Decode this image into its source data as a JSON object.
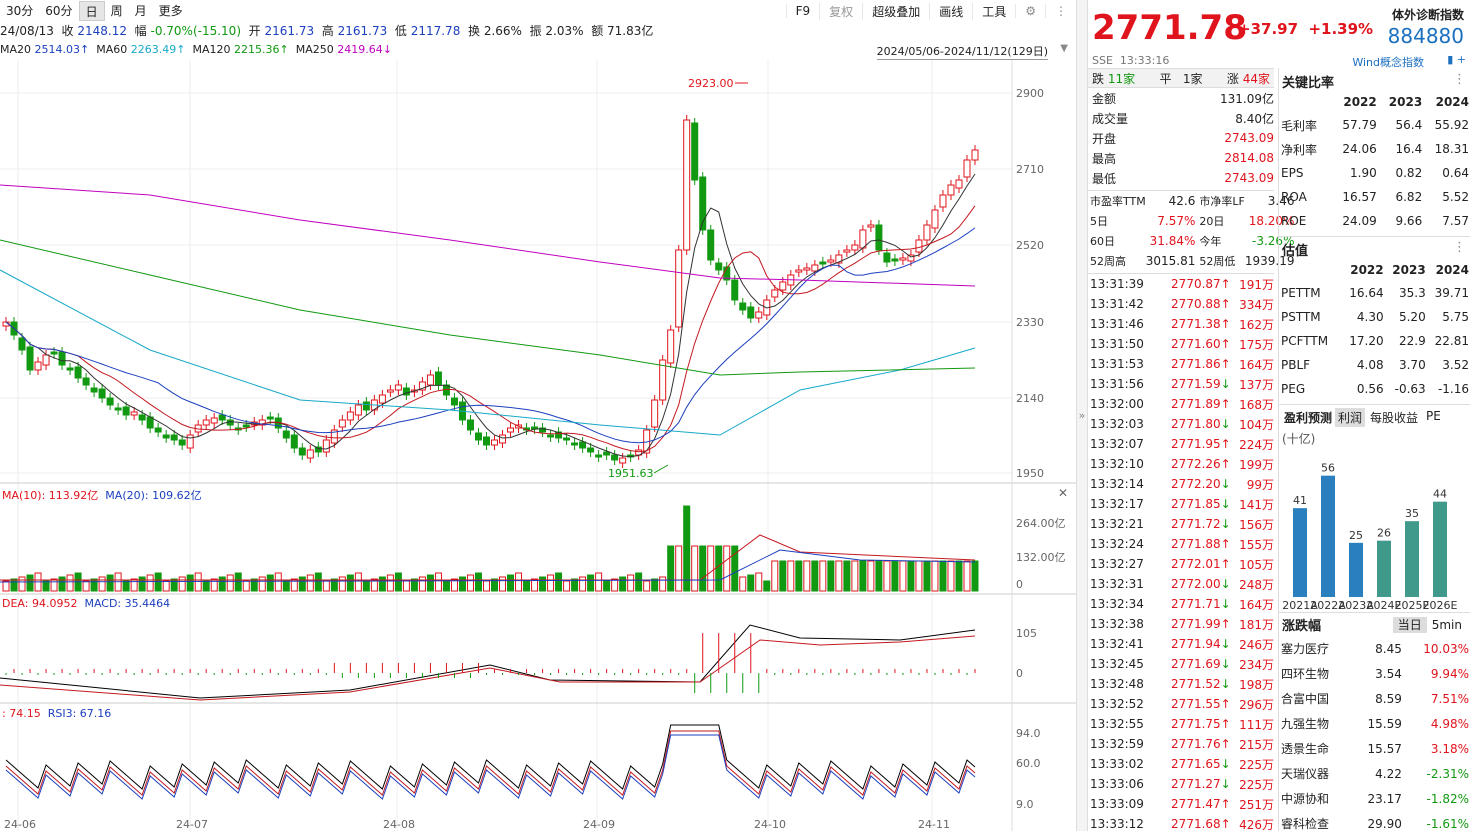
{
  "toolbar": {
    "left": [
      "30分",
      "60分",
      "日",
      "周",
      "月",
      "更多"
    ],
    "active": "日",
    "right": [
      "F9",
      "复权",
      "超级叠加",
      "画线",
      "工具"
    ]
  },
  "info": {
    "date": "24/08/13",
    "close_label": "收",
    "close": "2148.12",
    "amp_label": "幅",
    "amp": "-0.70%(-15.10)",
    "open_label": "开",
    "open": "2161.73",
    "high_label": "高",
    "high": "2161.73",
    "low_label": "低",
    "low": "2117.78",
    "turnover_label": "换",
    "turnover": "2.66%",
    "swing_label": "振",
    "swing": "2.03%",
    "amount_label": "额",
    "amount": "71.83亿"
  },
  "ma": [
    {
      "label": "MA20",
      "value": "2514.03↑",
      "color": "#1b3fbf"
    },
    {
      "label": "MA60",
      "value": "2263.49↑",
      "color": "#17a9c9"
    },
    {
      "label": "MA120",
      "value": "2215.36↑",
      "color": "#119911"
    },
    {
      "label": "MA250",
      "value": "2419.64↓",
      "color": "#c000c0"
    }
  ],
  "range_text": "2024/05/06-2024/11/12(129日)",
  "y_ticks": [
    "2900",
    "2710",
    "2520",
    "2330",
    "2140",
    "1950"
  ],
  "high_marker": "2923.00",
  "low_marker": "1951.63",
  "x_ticks": [
    "24-06",
    "24-07",
    "24-08",
    "24-09",
    "24-10",
    "24-11"
  ],
  "volume": {
    "ma10_label": "MA(10): 113.92亿",
    "ma20_label": "MA(20): 109.62亿",
    "ticks": [
      "264.00亿",
      "132.00亿",
      "0"
    ]
  },
  "macd": {
    "dea_label": "DEA: 94.0952",
    "macd_label": "MACD: 35.4464",
    "ticks": [
      "105",
      "0"
    ]
  },
  "rsi": {
    "rsi2_label": ": 74.15",
    "rsi3_label": "RSI3: 67.16",
    "ticks": [
      "94.0",
      "60.0",
      "9.0"
    ]
  },
  "quote": {
    "price": "2771.78",
    "change": "+37.97",
    "change_pct": "+1.39%",
    "name": "体外诊断指数",
    "code": "884880",
    "exchange": "SSE",
    "time": "13:33:16",
    "wind_label": "Wind概念指数"
  },
  "breadth": {
    "down_label": "跌",
    "down": "11家",
    "flat_label": "平",
    "flat": "1家",
    "up_label": "涨",
    "up": "44家"
  },
  "stats": [
    {
      "k": "金额",
      "v": "131.09亿",
      "c": "#222"
    },
    {
      "k": "成交量",
      "v": "8.40亿",
      "c": "#222"
    },
    {
      "k": "开盘",
      "v": "2743.09",
      "c": "#e0141c"
    },
    {
      "k": "最高",
      "v": "2814.08",
      "c": "#e0141c"
    },
    {
      "k": "最低",
      "v": "2743.09",
      "c": "#e0141c"
    }
  ],
  "valuation_rows": [
    {
      "k1": "市盈率TTM",
      "v1": "42.6",
      "k2": "市净率LF",
      "v2": "3.46",
      "c1": "#222",
      "c2": "#222"
    },
    {
      "k1": "5日",
      "v1": "7.57%",
      "k2": "20日",
      "v2": "18.20%",
      "c1": "#e0141c",
      "c2": "#e0141c"
    },
    {
      "k1": "60日",
      "v1": "31.84%",
      "k2": "今年",
      "v2": "-3.26%",
      "c1": "#e0141c",
      "c2": "#119911"
    },
    {
      "k1": "52周高",
      "v1": "3015.81",
      "k2": "52周低",
      "v2": "1939.19",
      "c1": "#222",
      "c2": "#222"
    }
  ],
  "ticks": [
    {
      "t": "13:31:39",
      "p": "2770.87",
      "d": "up",
      "v": "191万"
    },
    {
      "t": "13:31:42",
      "p": "2770.88",
      "d": "up",
      "v": "334万"
    },
    {
      "t": "13:31:46",
      "p": "2771.38",
      "d": "up",
      "v": "162万"
    },
    {
      "t": "13:31:50",
      "p": "2771.60",
      "d": "up",
      "v": "175万"
    },
    {
      "t": "13:31:53",
      "p": "2771.86",
      "d": "up",
      "v": "164万"
    },
    {
      "t": "13:31:56",
      "p": "2771.59",
      "d": "down",
      "v": "137万"
    },
    {
      "t": "13:32:00",
      "p": "2771.89",
      "d": "up",
      "v": "168万"
    },
    {
      "t": "13:32:03",
      "p": "2771.80",
      "d": "down",
      "v": "104万"
    },
    {
      "t": "13:32:07",
      "p": "2771.95",
      "d": "up",
      "v": "224万"
    },
    {
      "t": "13:32:10",
      "p": "2772.26",
      "d": "up",
      "v": "199万"
    },
    {
      "t": "13:32:14",
      "p": "2772.20",
      "d": "down",
      "v": "99万"
    },
    {
      "t": "13:32:17",
      "p": "2771.85",
      "d": "down",
      "v": "141万"
    },
    {
      "t": "13:32:21",
      "p": "2771.72",
      "d": "down",
      "v": "156万"
    },
    {
      "t": "13:32:24",
      "p": "2771.88",
      "d": "up",
      "v": "155万"
    },
    {
      "t": "13:32:27",
      "p": "2772.01",
      "d": "up",
      "v": "105万"
    },
    {
      "t": "13:32:31",
      "p": "2772.00",
      "d": "down",
      "v": "248万"
    },
    {
      "t": "13:32:34",
      "p": "2771.71",
      "d": "down",
      "v": "164万"
    },
    {
      "t": "13:32:38",
      "p": "2771.99",
      "d": "up",
      "v": "181万"
    },
    {
      "t": "13:32:41",
      "p": "2771.94",
      "d": "down",
      "v": "246万"
    },
    {
      "t": "13:32:45",
      "p": "2771.69",
      "d": "down",
      "v": "234万"
    },
    {
      "t": "13:32:48",
      "p": "2771.52",
      "d": "down",
      "v": "198万"
    },
    {
      "t": "13:32:52",
      "p": "2771.55",
      "d": "up",
      "v": "296万"
    },
    {
      "t": "13:32:55",
      "p": "2771.75",
      "d": "up",
      "v": "111万"
    },
    {
      "t": "13:32:59",
      "p": "2771.76",
      "d": "up",
      "v": "215万"
    },
    {
      "t": "13:33:02",
      "p": "2771.65",
      "d": "down",
      "v": "225万"
    },
    {
      "t": "13:33:06",
      "p": "2771.27",
      "d": "down",
      "v": "225万"
    },
    {
      "t": "13:33:09",
      "p": "2771.47",
      "d": "up",
      "v": "251万"
    },
    {
      "t": "13:33:12",
      "p": "2771.68",
      "d": "up",
      "v": "426万"
    }
  ],
  "ratios": {
    "title": "关键比率",
    "years": [
      "2022",
      "2023",
      "2024"
    ],
    "rows": [
      {
        "k": "毛利率",
        "v": [
          "57.79",
          "56.4",
          "55.92"
        ]
      },
      {
        "k": "净利率",
        "v": [
          "24.06",
          "16.4",
          "18.31"
        ]
      },
      {
        "k": "EPS",
        "v": [
          "1.90",
          "0.82",
          "0.64"
        ]
      },
      {
        "k": "ROA",
        "v": [
          "16.57",
          "6.82",
          "5.52"
        ]
      },
      {
        "k": "ROE",
        "v": [
          "24.09",
          "9.66",
          "7.57"
        ]
      }
    ]
  },
  "estimates": {
    "title": "估值",
    "years": [
      "2022",
      "2023",
      "2024"
    ],
    "rows": [
      {
        "k": "PETTM",
        "v": [
          "16.64",
          "35.3",
          "39.71"
        ]
      },
      {
        "k": "PSTTM",
        "v": [
          "4.30",
          "5.20",
          "5.75"
        ]
      },
      {
        "k": "PCFTTM",
        "v": [
          "17.20",
          "22.9",
          "22.81"
        ]
      },
      {
        "k": "PBLF",
        "v": [
          "4.08",
          "3.70",
          "3.52"
        ]
      },
      {
        "k": "PEG",
        "v": [
          "0.56",
          "-0.63",
          "-1.16"
        ]
      }
    ]
  },
  "forecast": {
    "tabs": [
      "盈利预测",
      "利润",
      "每股收益",
      "PE"
    ],
    "unit": "(十亿)",
    "chart_data": {
      "type": "bar",
      "categories": [
        "2021A",
        "2022A",
        "2023A",
        "2024E",
        "2025E",
        "2026E"
      ],
      "values": [
        41,
        56,
        25,
        26,
        35,
        44
      ],
      "colors": [
        "#2a7fbf",
        "#2a7fbf",
        "#2a7fbf",
        "#3f9a8c",
        "#3f9a8c",
        "#3f9a8c"
      ]
    }
  },
  "movers": {
    "title": "涨跌幅",
    "tabs": [
      "当日",
      "5min"
    ],
    "rows": [
      {
        "n": "塞力医疗",
        "p": "8.45",
        "c": "10.03%",
        "col": "#e0141c"
      },
      {
        "n": "四环生物",
        "p": "3.54",
        "c": "9.94%",
        "col": "#e0141c"
      },
      {
        "n": "合富中国",
        "p": "8.59",
        "c": "7.51%",
        "col": "#e0141c"
      },
      {
        "n": "九强生物",
        "p": "15.59",
        "c": "4.98%",
        "col": "#e0141c"
      },
      {
        "n": "透景生命",
        "p": "15.57",
        "c": "3.18%",
        "col": "#e0141c"
      },
      {
        "n": "天瑞仪器",
        "p": "4.22",
        "c": "-2.31%",
        "col": "#119911"
      },
      {
        "n": "中源协和",
        "p": "23.17",
        "c": "-1.82%",
        "col": "#119911"
      },
      {
        "n": "睿科检查",
        "p": "29.90",
        "c": "-1.61%",
        "col": "#119911"
      }
    ]
  }
}
